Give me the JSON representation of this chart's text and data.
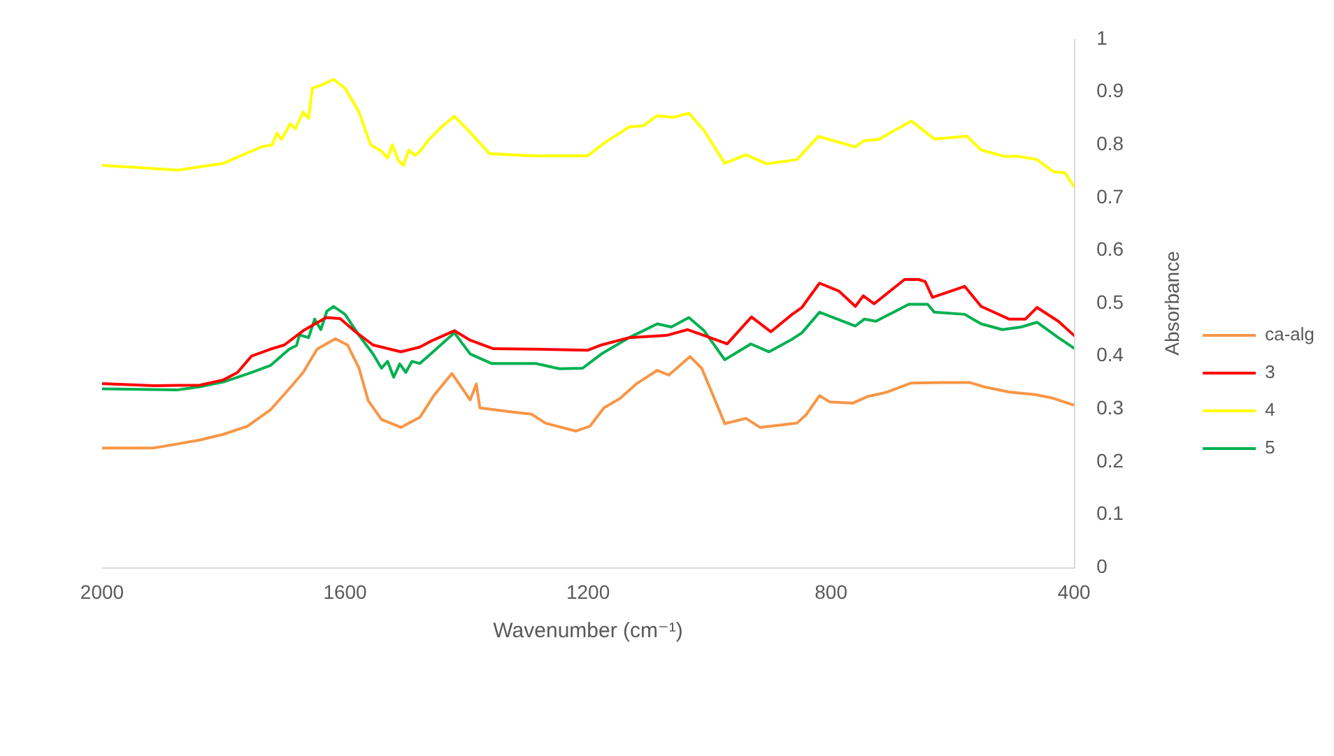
{
  "chart_data": {
    "type": "line",
    "xlabel": "Wavenumber (cm⁻¹)",
    "ylabel": "Absorbance",
    "xlim": [
      2000,
      400
    ],
    "xticks": [
      2000,
      1600,
      1200,
      800,
      400
    ],
    "ylim": [
      0,
      1
    ],
    "yticks": [
      0,
      0.1,
      0.2,
      0.3,
      0.4,
      0.5,
      0.6,
      0.7,
      0.8,
      0.9,
      1
    ],
    "legend": "right",
    "marker": "none",
    "series": [
      {
        "name": "ca-alg",
        "color": "#f79646",
        "x": [
          2000,
          1915,
          1839,
          1800,
          1761,
          1723,
          1692,
          1669,
          1646,
          1616,
          1596,
          1577,
          1562,
          1540,
          1508,
          1477,
          1454,
          1424,
          1394,
          1384,
          1378,
          1324,
          1293,
          1270,
          1220,
          1197,
          1174,
          1147,
          1121,
          1086,
          1067,
          1032,
          1013,
          994,
          975,
          940,
          917,
          856,
          841,
          819,
          802,
          764,
          741,
          710,
          668,
          618,
          572,
          549,
          507,
          464,
          434,
          400
        ],
        "values": [
          0.226,
          0.226,
          0.241,
          0.252,
          0.267,
          0.298,
          0.338,
          0.369,
          0.413,
          0.433,
          0.421,
          0.377,
          0.316,
          0.28,
          0.265,
          0.284,
          0.325,
          0.367,
          0.317,
          0.347,
          0.302,
          0.294,
          0.29,
          0.273,
          0.258,
          0.267,
          0.302,
          0.32,
          0.347,
          0.373,
          0.364,
          0.399,
          0.377,
          0.325,
          0.272,
          0.282,
          0.265,
          0.273,
          0.289,
          0.325,
          0.313,
          0.311,
          0.323,
          0.331,
          0.349,
          0.35,
          0.35,
          0.342,
          0.332,
          0.327,
          0.32,
          0.307
        ]
      },
      {
        "name": "3",
        "color": "#ff0000",
        "x": [
          2000,
          1915,
          1839,
          1800,
          1777,
          1754,
          1723,
          1700,
          1669,
          1631,
          1608,
          1585,
          1554,
          1508,
          1477,
          1459,
          1420,
          1394,
          1356,
          1286,
          1201,
          1178,
          1132,
          1071,
          1036,
          1009,
          971,
          931,
          899,
          864,
          848,
          819,
          787,
          760,
          747,
          729,
          679,
          656,
          645,
          633,
          580,
          553,
          507,
          480,
          461,
          426,
          400
        ],
        "values": [
          0.348,
          0.344,
          0.345,
          0.355,
          0.369,
          0.4,
          0.413,
          0.421,
          0.448,
          0.473,
          0.471,
          0.448,
          0.421,
          0.408,
          0.417,
          0.428,
          0.448,
          0.43,
          0.414,
          0.413,
          0.411,
          0.421,
          0.435,
          0.439,
          0.45,
          0.439,
          0.423,
          0.474,
          0.446,
          0.479,
          0.492,
          0.538,
          0.523,
          0.494,
          0.514,
          0.499,
          0.545,
          0.545,
          0.541,
          0.511,
          0.532,
          0.494,
          0.47,
          0.47,
          0.492,
          0.466,
          0.439
        ]
      },
      {
        "name": "4",
        "color": "#ffff00",
        "x": [
          2000,
          1940,
          1876,
          1800,
          1738,
          1720,
          1712,
          1705,
          1690,
          1682,
          1669,
          1660,
          1654,
          1635,
          1619,
          1600,
          1577,
          1558,
          1540,
          1530,
          1522,
          1512,
          1504,
          1495,
          1485,
          1477,
          1462,
          1440,
          1420,
          1397,
          1362,
          1286,
          1201,
          1171,
          1132,
          1109,
          1086,
          1059,
          1034,
          1009,
          975,
          940,
          906,
          856,
          821,
          760,
          745,
          722,
          668,
          630,
          576,
          553,
          514,
          491,
          461,
          434,
          415,
          400
        ],
        "values": [
          0.761,
          0.757,
          0.752,
          0.765,
          0.796,
          0.8,
          0.822,
          0.81,
          0.84,
          0.83,
          0.862,
          0.85,
          0.907,
          0.915,
          0.924,
          0.907,
          0.862,
          0.8,
          0.788,
          0.775,
          0.8,
          0.77,
          0.761,
          0.79,
          0.78,
          0.787,
          0.81,
          0.835,
          0.854,
          0.827,
          0.783,
          0.779,
          0.779,
          0.805,
          0.834,
          0.836,
          0.855,
          0.852,
          0.86,
          0.827,
          0.765,
          0.781,
          0.764,
          0.772,
          0.816,
          0.796,
          0.808,
          0.81,
          0.845,
          0.811,
          0.816,
          0.79,
          0.778,
          0.778,
          0.772,
          0.749,
          0.747,
          0.721
        ]
      },
      {
        "name": "5",
        "color": "#00b050",
        "x": [
          2000,
          1876,
          1839,
          1800,
          1754,
          1723,
          1692,
          1680,
          1675,
          1660,
          1650,
          1640,
          1630,
          1619,
          1600,
          1577,
          1554,
          1540,
          1530,
          1520,
          1510,
          1500,
          1490,
          1477,
          1459,
          1420,
          1394,
          1359,
          1286,
          1247,
          1209,
          1178,
          1132,
          1086,
          1063,
          1034,
          1009,
          975,
          932,
          902,
          864,
          848,
          819,
          760,
          745,
          726,
          672,
          641,
          630,
          580,
          553,
          518,
          487,
          461,
          426,
          400
        ],
        "values": [
          0.338,
          0.336,
          0.342,
          0.351,
          0.369,
          0.382,
          0.413,
          0.42,
          0.44,
          0.435,
          0.47,
          0.45,
          0.485,
          0.494,
          0.479,
          0.439,
          0.404,
          0.377,
          0.39,
          0.36,
          0.385,
          0.369,
          0.39,
          0.386,
          0.404,
          0.444,
          0.404,
          0.386,
          0.386,
          0.376,
          0.377,
          0.404,
          0.435,
          0.461,
          0.455,
          0.473,
          0.448,
          0.393,
          0.423,
          0.408,
          0.432,
          0.444,
          0.483,
          0.457,
          0.47,
          0.466,
          0.498,
          0.498,
          0.483,
          0.479,
          0.461,
          0.45,
          0.455,
          0.464,
          0.435,
          0.415
        ]
      }
    ]
  }
}
